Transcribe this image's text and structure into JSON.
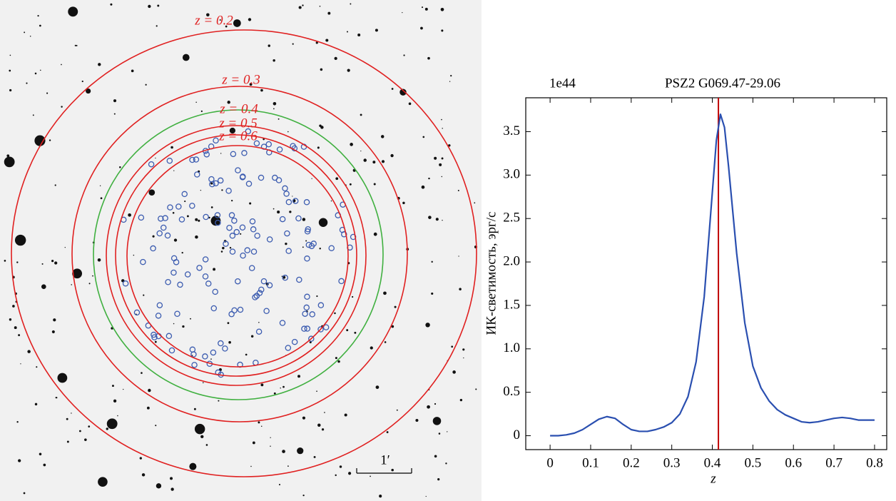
{
  "image_panel": {
    "circle_labels": [
      {
        "label": "z = 0.2",
        "color": "#e02020"
      },
      {
        "label": "z = 0.3",
        "color": "#e02020"
      },
      {
        "label": "z = 0.4",
        "color": "#e02020"
      },
      {
        "label": "z = 0.5",
        "color": "#e02020"
      },
      {
        "label": "z = 0.6",
        "color": "#e02020"
      }
    ],
    "scale_label": "1′"
  },
  "chart_data": {
    "type": "line",
    "title": "PSZ2 G069.47-29.06",
    "offset_label": "1e44",
    "y_label": "ИК-светимость, эрг/с",
    "x_label": "z",
    "x": [
      0,
      0.02,
      0.04,
      0.06,
      0.08,
      0.1,
      0.12,
      0.14,
      0.16,
      0.18,
      0.2,
      0.22,
      0.24,
      0.26,
      0.28,
      0.3,
      0.32,
      0.34,
      0.36,
      0.38,
      0.4,
      0.41,
      0.42,
      0.43,
      0.44,
      0.46,
      0.48,
      0.5,
      0.52,
      0.54,
      0.56,
      0.58,
      0.6,
      0.62,
      0.64,
      0.66,
      0.68,
      0.7,
      0.72,
      0.74,
      0.76,
      0.78,
      0.8
    ],
    "values": [
      0,
      0,
      0.01,
      0.03,
      0.07,
      0.13,
      0.19,
      0.22,
      0.2,
      0.13,
      0.07,
      0.05,
      0.05,
      0.07,
      0.1,
      0.15,
      0.25,
      0.45,
      0.85,
      1.6,
      2.8,
      3.4,
      3.7,
      3.55,
      3.1,
      2.1,
      1.3,
      0.8,
      0.55,
      0.4,
      0.3,
      0.24,
      0.2,
      0.16,
      0.15,
      0.16,
      0.18,
      0.2,
      0.21,
      0.2,
      0.18,
      0.18,
      0.18
    ],
    "color": "#2a4fb0",
    "marker_z": 0.415,
    "marker_color": "#c00000",
    "xlim": [
      -0.06,
      0.83
    ],
    "ylim": [
      -0.16,
      3.89
    ],
    "xticks": [
      0,
      0.1,
      0.2,
      0.3,
      0.4,
      0.5,
      0.6,
      0.7,
      0.8
    ],
    "yticks": [
      0,
      0.5,
      {
        "value": 1,
        "label": "1.0"
      },
      1.5,
      {
        "value": 2,
        "label": "2.0"
      },
      2.5,
      {
        "value": 3,
        "label": "3.0"
      },
      3.5
    ]
  }
}
